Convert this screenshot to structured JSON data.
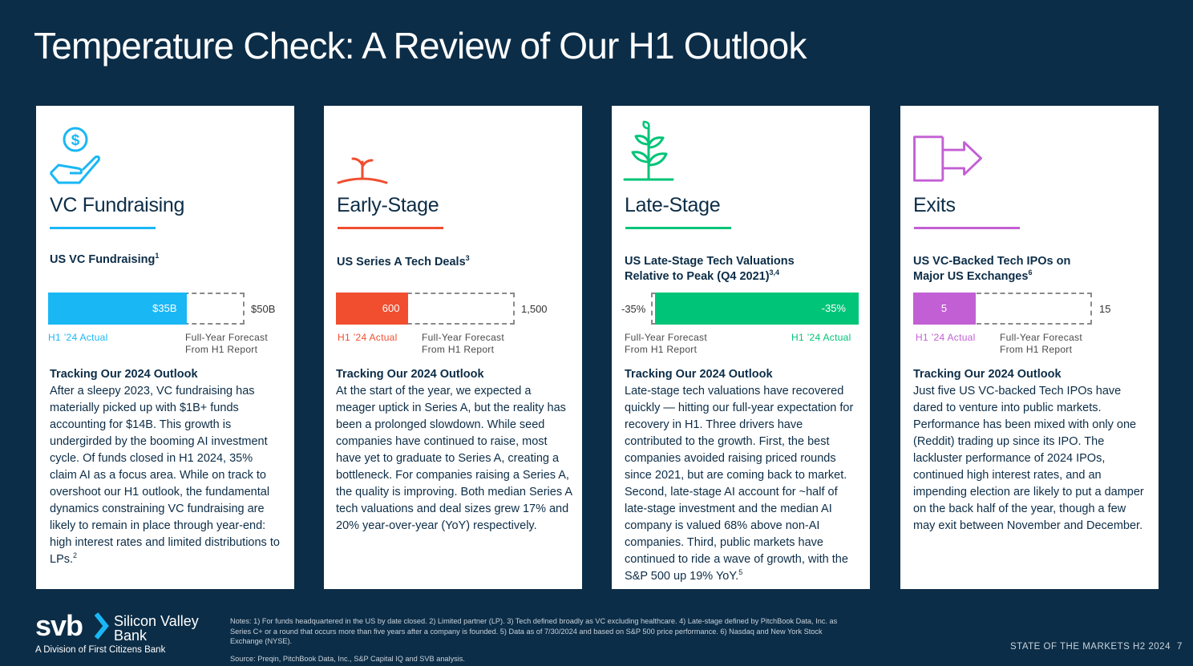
{
  "title": "Temperature Check: A Review of Our H1 Outlook",
  "colors": {
    "background": "#0c2d47",
    "vc": "#1ab7f5",
    "early": "#f04e2f",
    "late": "#00c477",
    "exits": "#c35fd4"
  },
  "cards": [
    {
      "icon": "money-hand-icon",
      "heading": "VC Fundraising",
      "metric_title": "US VC Fundraising",
      "metric_sup": "1",
      "bar": {
        "actual_label": "$35B",
        "end_label": "$50B",
        "actual_fraction": 0.7
      },
      "legend_actual": "H1 ’24 Actual",
      "legend_forecast_1": "Full-Year Forecast",
      "legend_forecast_2": "From H1 Report",
      "tracking_heading": "Tracking Our 2024 Outlook",
      "body": "After a sleepy 2023, VC fundraising has materially picked up with $1B+ funds accounting for $14B. This growth is undergirded by the booming AI investment cycle. Of funds closed in H1 2024, 35% claim AI as a focus area. While on track to overshoot our H1 outlook, the fundamental dynamics constraining VC fundraising are likely to remain in place through year-end: high interest rates and limited distributions to LPs.",
      "body_sup": "2"
    },
    {
      "icon": "sprout-icon",
      "heading": "Early-Stage",
      "metric_title": "US Series A Tech Deals",
      "metric_sup": "3",
      "bar": {
        "actual_label": "600",
        "end_label": "1,500",
        "actual_fraction": 0.4
      },
      "legend_actual": "H1 ’24 Actual",
      "legend_forecast_1": "Full-Year Forecast",
      "legend_forecast_2": "From H1 Report",
      "tracking_heading": "Tracking Our 2024 Outlook",
      "body": "At the start of the year, we expected a meager uptick in Series A, but the reality has been a prolonged slowdown. While seed companies have continued to raise, most have yet to graduate to Series A, creating a bottleneck. For companies raising a Series A, the quality is improving. Both median Series A tech valuations and deal sizes grew 17% and 20% year-over-year (YoY) respectively.",
      "body_sup": ""
    },
    {
      "icon": "plant-icon",
      "heading": "Late-Stage",
      "metric_title_1": "US Late-Stage Tech Valuations",
      "metric_title_2": "Relative to Peak (Q4 2021)",
      "metric_sup": "3,4",
      "bar": {
        "actual_label": "-35%",
        "start_label": "-35%",
        "actual_fraction": 1.0
      },
      "legend_actual": "H1 ’24 Actual",
      "legend_forecast_1": "Full-Year Forecast",
      "legend_forecast_2": "From H1 Report",
      "tracking_heading": "Tracking Our 2024 Outlook",
      "body": "Late-stage tech valuations have recovered quickly — hitting our full-year expectation for recovery in H1. Three drivers have contributed to the growth. First, the best companies avoided raising priced rounds since 2021, but are coming back to market. Second, late-stage AI account for ~half of late-stage investment and the median AI company is valued 68% above non-AI companies. Third, public markets have continued to ride a wave of growth, with the S&P 500 up 19% YoY.",
      "body_sup": "5"
    },
    {
      "icon": "exit-arrow-icon",
      "heading": "Exits",
      "metric_title_1": "US VC-Backed Tech IPOs on",
      "metric_title_2": "Major US Exchanges",
      "metric_sup": "6",
      "bar": {
        "actual_label": "5",
        "end_label": "15",
        "actual_fraction": 0.333
      },
      "legend_actual": "H1 ’24 Actual",
      "legend_forecast_1": "Full-Year Forecast",
      "legend_forecast_2": "From H1 Report",
      "tracking_heading": "Tracking Our 2024 Outlook",
      "body": "Just five US VC-backed Tech IPOs have dared to venture into public markets. Performance has been mixed with only one (Reddit) trading up since its IPO. The lackluster performance of 2024 IPOs, continued high interest rates, and an impending election are likely to put a damper on the back half of the year, though a few may exit between November and December.",
      "body_sup": ""
    }
  ],
  "footer": {
    "logo_mark": "svb",
    "logo_name_1": "Silicon Valley",
    "logo_name_2": "Bank",
    "logo_division": "A Division of First Citizens Bank",
    "notes": "Notes: 1) For funds headquartered in the US by date closed. 2) Limited partner (LP). 3) Tech defined broadly as VC excluding healthcare. 4) Late-stage defined by PitchBook Data, Inc. as Series C+ or a round that occurs more than five years after a company is founded. 5) Data as of 7/30/2024 and based on S&P 500 price performance. 6) Nasdaq and New York Stock Exchange (NYSE).",
    "source": "Source: Preqin, PitchBook Data, Inc., S&P Capital IQ and SVB analysis.",
    "report_name": "STATE OF THE MARKETS H2 2024",
    "page_number": "7"
  }
}
